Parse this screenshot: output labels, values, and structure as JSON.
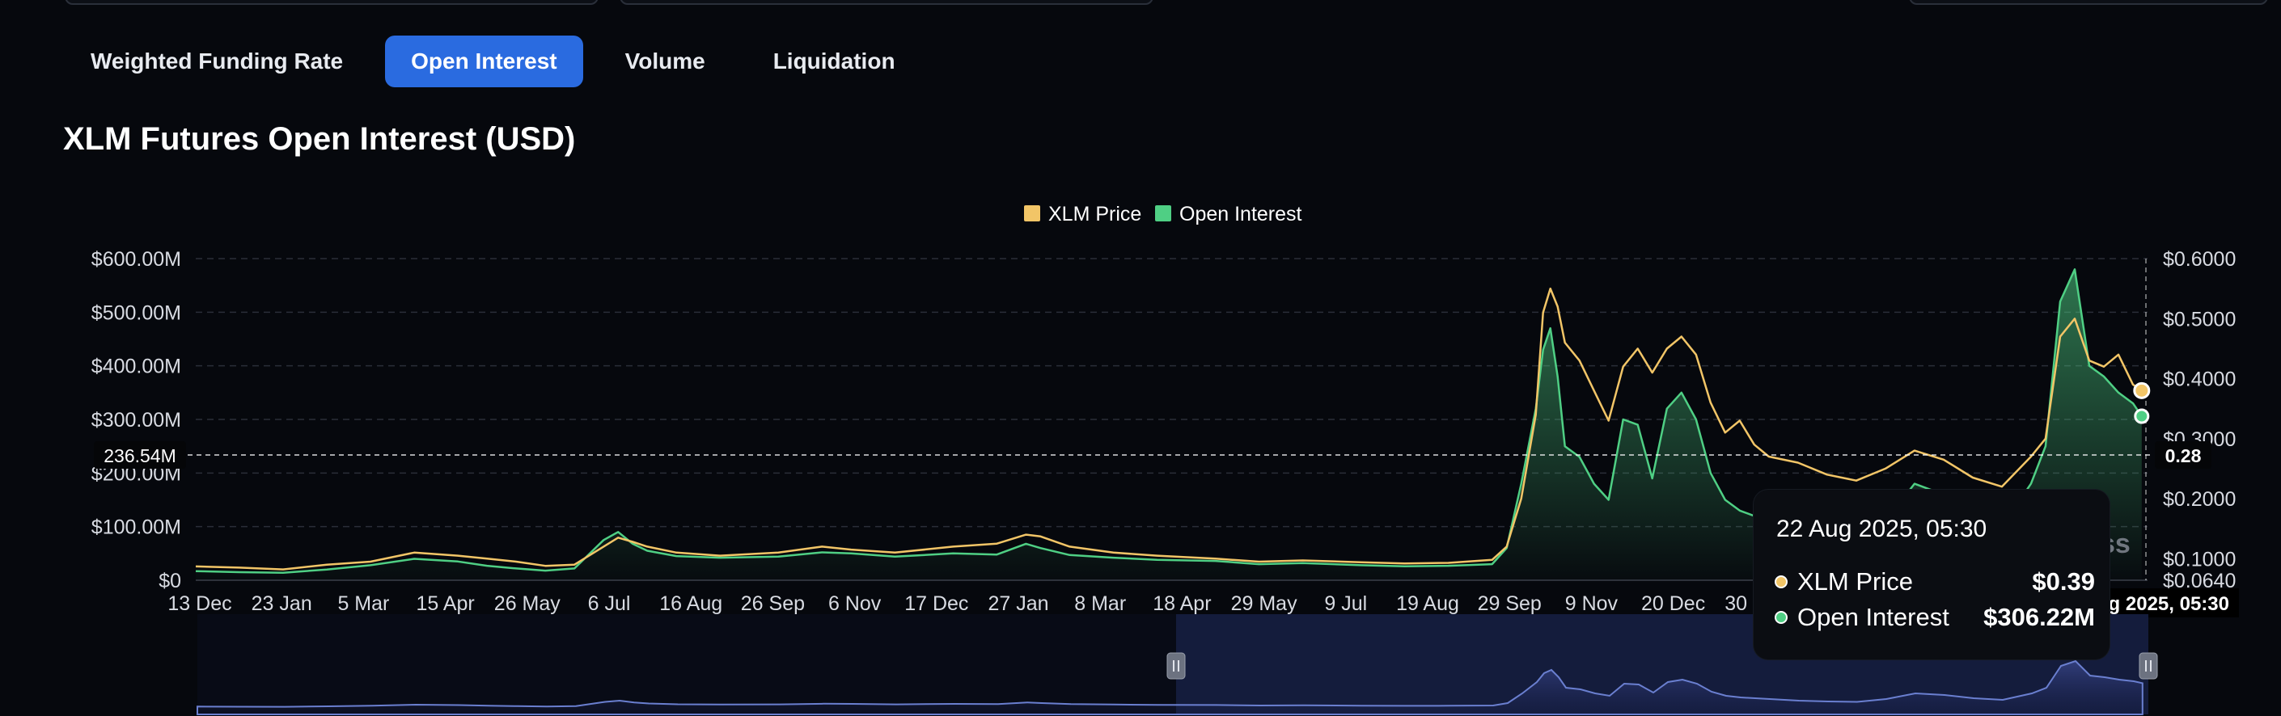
{
  "tabs": [
    {
      "label": "Weighted Funding Rate",
      "active": false
    },
    {
      "label": "Open Interest",
      "active": true
    },
    {
      "label": "Volume",
      "active": false
    },
    {
      "label": "Liquidation",
      "active": false
    }
  ],
  "title": "XLM Futures Open Interest (USD)",
  "colors": {
    "price": "#f2c567",
    "oi": "#4fcf84",
    "accent": "#2a6be0",
    "navigator": "#6a7fd0"
  },
  "crosshair": {
    "left_label": "236.54M",
    "right_label": "0.28"
  },
  "tooltip": {
    "time": "22 Aug 2025, 05:30",
    "rows": [
      {
        "label": "XLM Price",
        "value": "$0.39"
      },
      {
        "label": "Open Interest",
        "value": "$306.22M"
      }
    ]
  },
  "x_axis_last_label": "22 Aug 2025, 05:30",
  "watermark": "ss",
  "chart_data": {
    "type": "line",
    "legend": [
      "XLM Price",
      "Open Interest"
    ],
    "legend_position": "top-center",
    "grid": true,
    "y_left": {
      "ticks": [
        "$0",
        "$100.00M",
        "$200.00M",
        "$300.00M",
        "$400.00M",
        "$500.00M",
        "$600.00M"
      ],
      "range": [
        0,
        600
      ]
    },
    "y_right": {
      "ticks": [
        "$0.0640",
        "$0.1000",
        "$0.2000",
        "$0.3000",
        "$0.4000",
        "$0.5000",
        "$0.6000"
      ],
      "range": [
        0.064,
        0.6
      ]
    },
    "x_ticks": [
      "13 Dec",
      "23 Jan",
      "5 Mar",
      "15 Apr",
      "26 May",
      "6 Jul",
      "16 Aug",
      "26 Sep",
      "6 Nov",
      "17 Dec",
      "27 Jan",
      "8 Mar",
      "18 Apr",
      "29 May",
      "9 Jul",
      "19 Aug",
      "29 Sep",
      "9 Nov",
      "20 Dec",
      "30 Jan"
    ],
    "series": [
      {
        "name": "XLM Price",
        "axis": "right",
        "points": [
          [
            0,
            0.087
          ],
          [
            3,
            0.085
          ],
          [
            6,
            0.082
          ],
          [
            9,
            0.09
          ],
          [
            12,
            0.095
          ],
          [
            15,
            0.11
          ],
          [
            18,
            0.105
          ],
          [
            20,
            0.1
          ],
          [
            22,
            0.095
          ],
          [
            24,
            0.088
          ],
          [
            26,
            0.09
          ],
          [
            28,
            0.12
          ],
          [
            29,
            0.135
          ],
          [
            30,
            0.128
          ],
          [
            31,
            0.12
          ],
          [
            33,
            0.11
          ],
          [
            36,
            0.105
          ],
          [
            40,
            0.11
          ],
          [
            43,
            0.12
          ],
          [
            45,
            0.115
          ],
          [
            48,
            0.11
          ],
          [
            52,
            0.12
          ],
          [
            55,
            0.125
          ],
          [
            57,
            0.14
          ],
          [
            58,
            0.137
          ],
          [
            60,
            0.12
          ],
          [
            63,
            0.11
          ],
          [
            66,
            0.105
          ],
          [
            70,
            0.1
          ],
          [
            73,
            0.095
          ],
          [
            76,
            0.097
          ],
          [
            80,
            0.094
          ],
          [
            83,
            0.092
          ],
          [
            86,
            0.093
          ],
          [
            89,
            0.098
          ],
          [
            90,
            0.12
          ],
          [
            91,
            0.2
          ],
          [
            92,
            0.34
          ],
          [
            92.5,
            0.51
          ],
          [
            93,
            0.55
          ],
          [
            93.5,
            0.52
          ],
          [
            94,
            0.46
          ],
          [
            95,
            0.43
          ],
          [
            96,
            0.38
          ],
          [
            97,
            0.33
          ],
          [
            98,
            0.42
          ],
          [
            99,
            0.45
          ],
          [
            100,
            0.41
          ],
          [
            101,
            0.45
          ],
          [
            102,
            0.47
          ],
          [
            103,
            0.44
          ],
          [
            104,
            0.36
          ],
          [
            105,
            0.31
          ],
          [
            106,
            0.33
          ],
          [
            107,
            0.29
          ],
          [
            108,
            0.27
          ],
          [
            110,
            0.26
          ],
          [
            112,
            0.24
          ],
          [
            114,
            0.23
          ],
          [
            116,
            0.25
          ],
          [
            118,
            0.28
          ],
          [
            120,
            0.265
          ],
          [
            122,
            0.235
          ],
          [
            124,
            0.22
          ],
          [
            126,
            0.27
          ],
          [
            127,
            0.3
          ],
          [
            128,
            0.47
          ],
          [
            129,
            0.5
          ],
          [
            130,
            0.43
          ],
          [
            131,
            0.42
          ],
          [
            132,
            0.44
          ],
          [
            133,
            0.39
          ],
          [
            133.6,
            0.38
          ]
        ]
      },
      {
        "name": "Open Interest",
        "axis": "left",
        "points": [
          [
            0,
            17
          ],
          [
            3,
            15
          ],
          [
            6,
            14
          ],
          [
            9,
            20
          ],
          [
            12,
            28
          ],
          [
            15,
            40
          ],
          [
            18,
            35
          ],
          [
            20,
            27
          ],
          [
            22,
            22
          ],
          [
            24,
            18
          ],
          [
            26,
            22
          ],
          [
            28,
            75
          ],
          [
            29,
            90
          ],
          [
            30,
            68
          ],
          [
            31,
            55
          ],
          [
            33,
            45
          ],
          [
            36,
            42
          ],
          [
            40,
            44
          ],
          [
            43,
            52
          ],
          [
            45,
            50
          ],
          [
            48,
            44
          ],
          [
            52,
            50
          ],
          [
            55,
            48
          ],
          [
            57,
            68
          ],
          [
            58,
            60
          ],
          [
            60,
            47
          ],
          [
            63,
            42
          ],
          [
            66,
            38
          ],
          [
            70,
            36
          ],
          [
            73,
            30
          ],
          [
            76,
            32
          ],
          [
            80,
            28
          ],
          [
            83,
            26
          ],
          [
            86,
            27
          ],
          [
            89,
            30
          ],
          [
            90,
            60
          ],
          [
            91,
            180
          ],
          [
            92,
            320
          ],
          [
            92.5,
            430
          ],
          [
            93,
            470
          ],
          [
            93.5,
            380
          ],
          [
            94,
            250
          ],
          [
            95,
            230
          ],
          [
            96,
            180
          ],
          [
            97,
            150
          ],
          [
            98,
            300
          ],
          [
            99,
            290
          ],
          [
            100,
            190
          ],
          [
            101,
            320
          ],
          [
            102,
            350
          ],
          [
            103,
            300
          ],
          [
            104,
            200
          ],
          [
            105,
            150
          ],
          [
            106,
            130
          ],
          [
            107,
            120
          ],
          [
            108,
            110
          ],
          [
            110,
            90
          ],
          [
            112,
            80
          ],
          [
            114,
            75
          ],
          [
            116,
            110
          ],
          [
            118,
            180
          ],
          [
            120,
            160
          ],
          [
            122,
            120
          ],
          [
            124,
            100
          ],
          [
            126,
            180
          ],
          [
            127,
            250
          ],
          [
            128,
            520
          ],
          [
            129,
            580
          ],
          [
            130,
            400
          ],
          [
            131,
            380
          ],
          [
            132,
            350
          ],
          [
            133,
            330
          ],
          [
            133.6,
            306
          ]
        ]
      }
    ]
  }
}
